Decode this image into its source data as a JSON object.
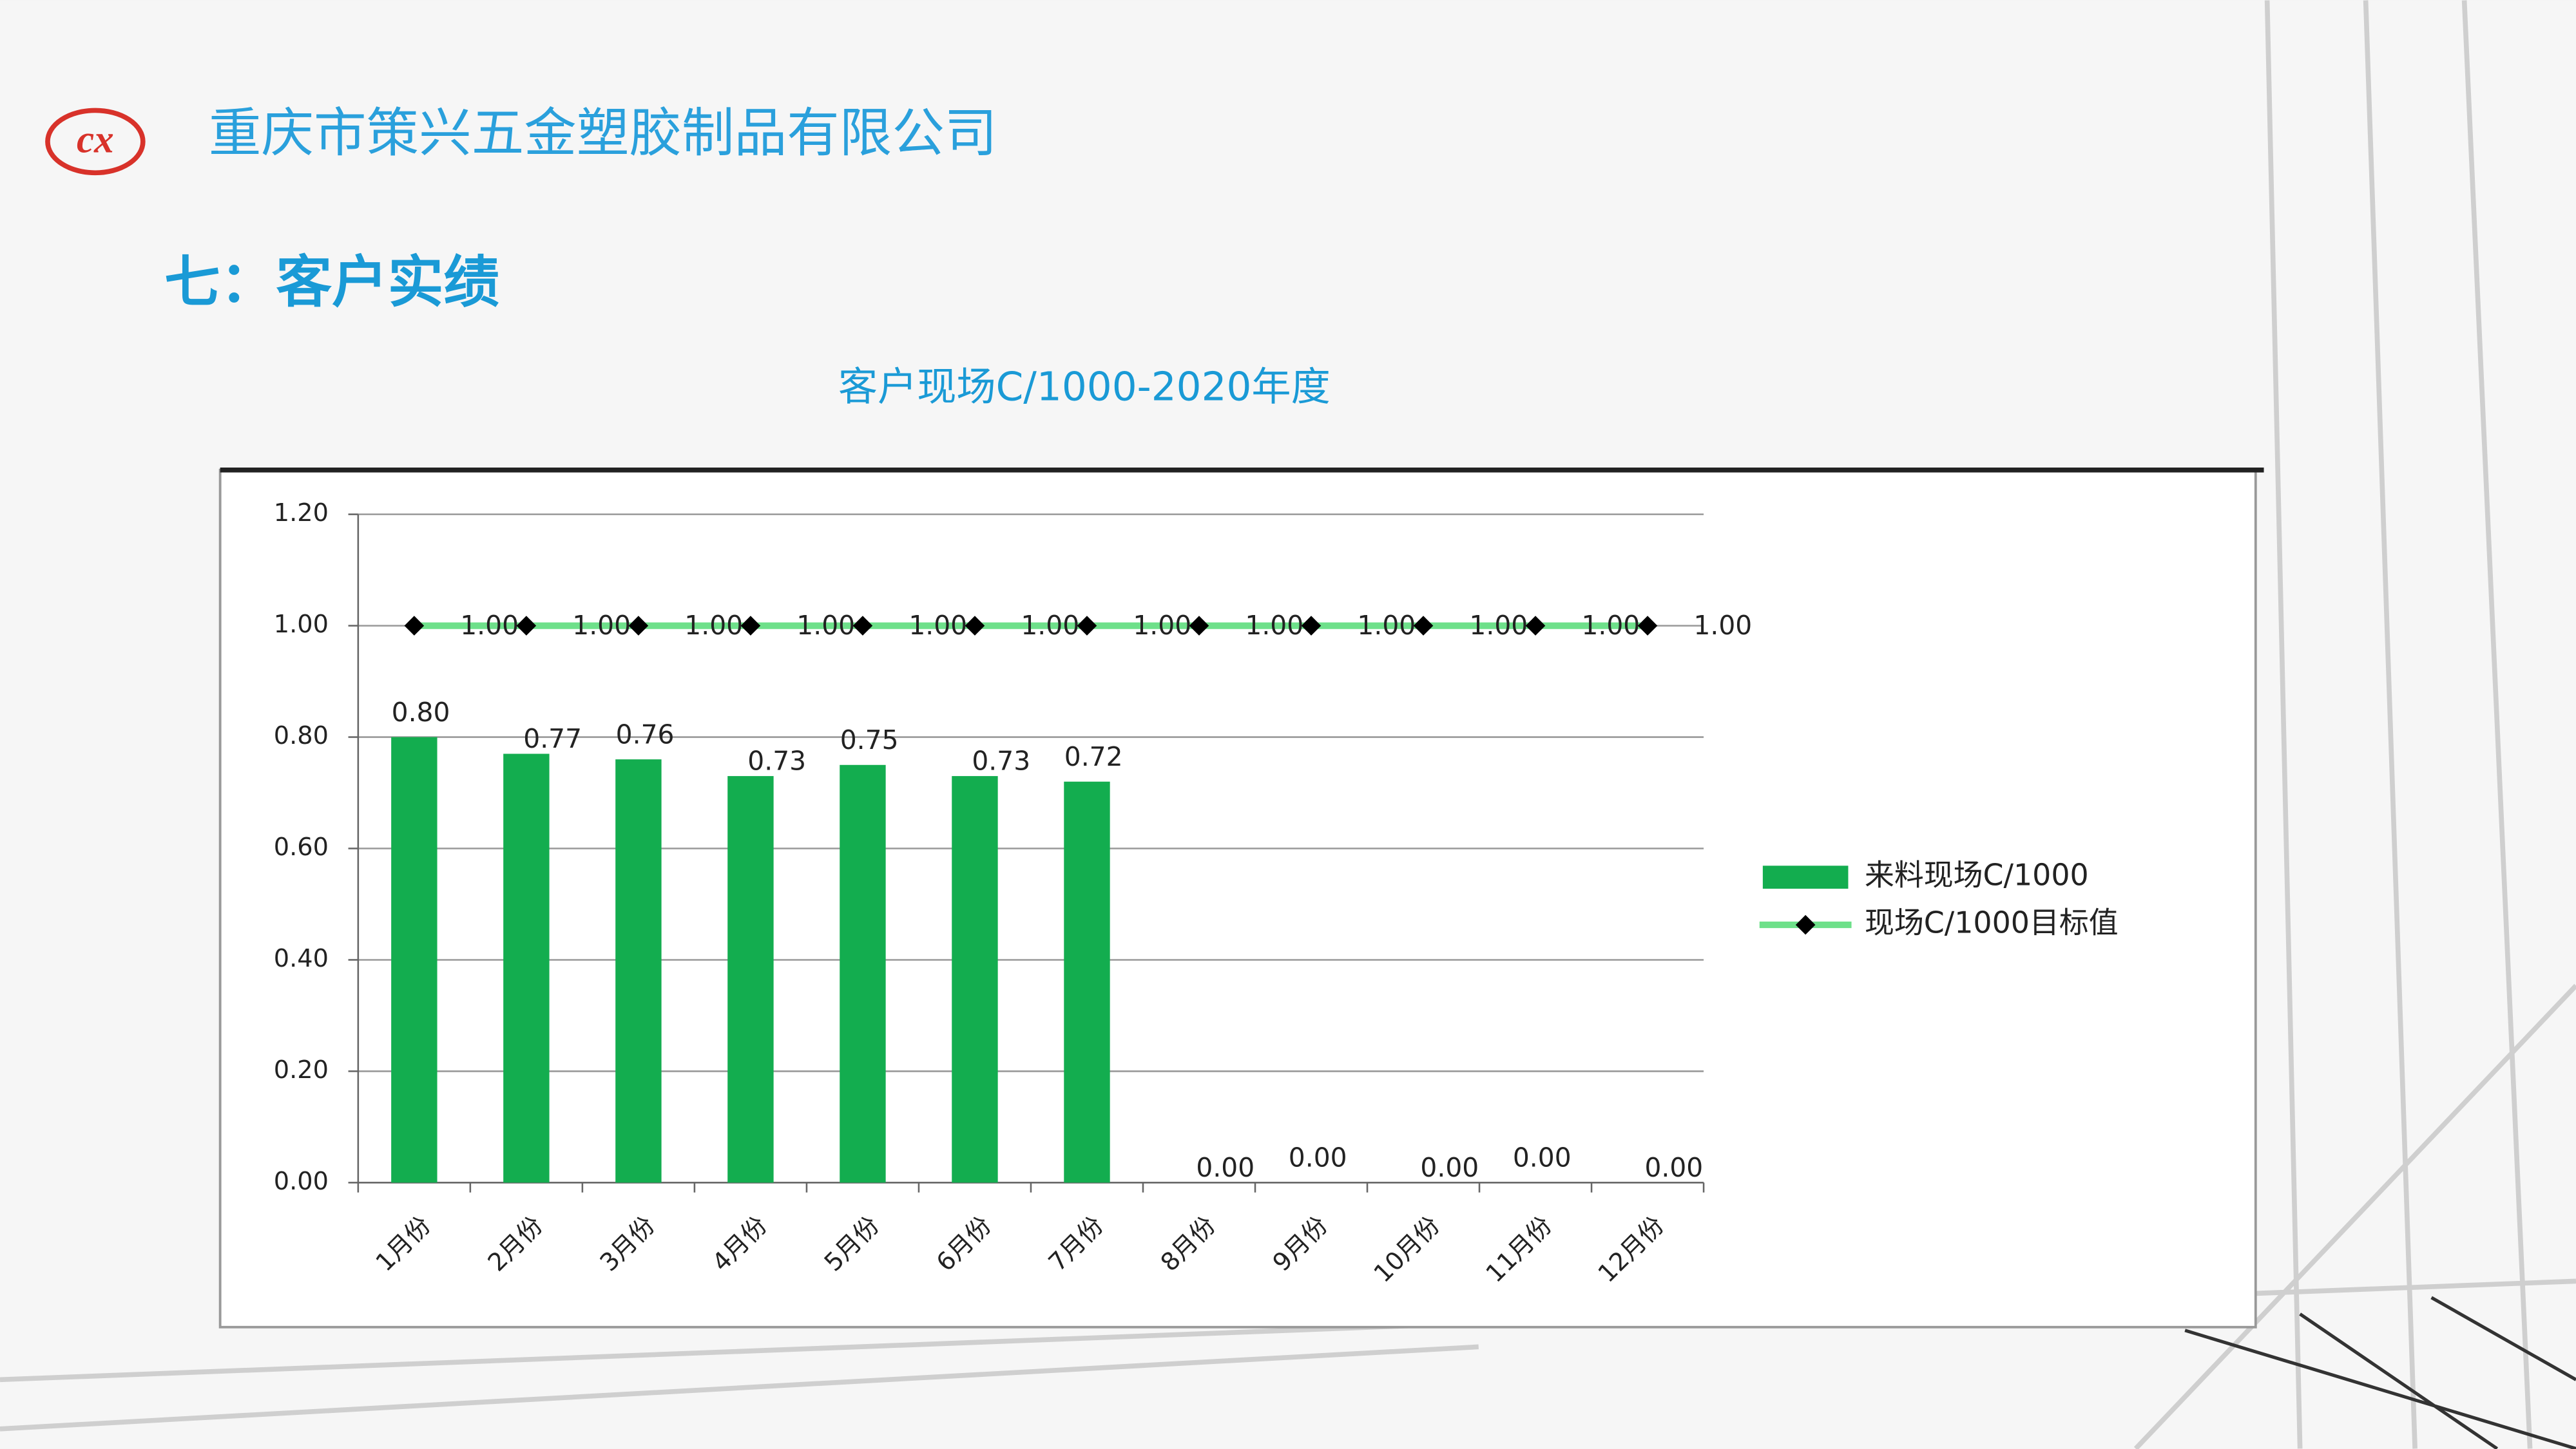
{
  "header": {
    "logo": "cx",
    "company": "重庆市策兴五金塑胶制品有限公司",
    "section": "七：客户实绩"
  },
  "chart_data": {
    "type": "bar",
    "title": "客户现场C/1000-2020年度",
    "categories": [
      "1月份",
      "2月份",
      "3月份",
      "4月份",
      "5月份",
      "6月份",
      "7月份",
      "8月份",
      "9月份",
      "10月份",
      "11月份",
      "12月份"
    ],
    "series": [
      {
        "name": "来料现场C/1000",
        "type": "bar",
        "color": "#13ad4f",
        "values": [
          0.8,
          0.77,
          0.76,
          0.73,
          0.75,
          0.73,
          0.72,
          0,
          0,
          0,
          0,
          0
        ],
        "value_labels": [
          "0.80",
          "0.77",
          "0.76",
          "0.73",
          "0.75",
          "0.73",
          "0.72",
          "0.00",
          "0.00",
          "0.00",
          "0.00",
          "0.00"
        ]
      },
      {
        "name": "现场C/1000目标值",
        "type": "line",
        "color": "#6ee08a",
        "marker_color": "#000000",
        "values": [
          1,
          1,
          1,
          1,
          1,
          1,
          1,
          1,
          1,
          1,
          1,
          1
        ],
        "value_labels": [
          "1.00",
          "1.00",
          "1.00",
          "1.00",
          "1.00",
          "1.00",
          "1.00",
          "1.00",
          "1.00",
          "1.00",
          "1.00",
          "1.00"
        ]
      }
    ],
    "ylim": [
      0,
      1.2
    ],
    "yticks": [
      {
        "value": 0,
        "label": "0.00"
      },
      {
        "value": 0.2,
        "label": "0.20"
      },
      {
        "value": 0.4,
        "label": "0.40"
      },
      {
        "value": 0.6,
        "label": "0.60"
      },
      {
        "value": 0.8,
        "label": "0.80"
      },
      {
        "value": 1,
        "label": "1.00"
      },
      {
        "value": 1.2,
        "label": "1.20"
      }
    ],
    "grid": true,
    "legend": "right"
  }
}
